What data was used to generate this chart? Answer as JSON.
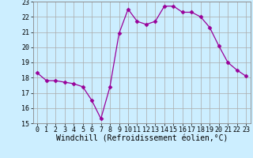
{
  "hours": [
    0,
    1,
    2,
    3,
    4,
    5,
    6,
    7,
    8,
    9,
    10,
    11,
    12,
    13,
    14,
    15,
    16,
    17,
    18,
    19,
    20,
    21,
    22,
    23
  ],
  "values": [
    18.3,
    17.8,
    17.8,
    17.7,
    17.6,
    17.4,
    16.5,
    15.3,
    17.4,
    20.9,
    22.5,
    21.7,
    21.5,
    21.7,
    22.7,
    22.7,
    22.3,
    22.3,
    22.0,
    21.3,
    20.1,
    19.0,
    18.5,
    18.1
  ],
  "line_color": "#990099",
  "marker": "D",
  "marker_size": 2.5,
  "bg_color": "#cceeff",
  "grid_color": "#aaaaaa",
  "xlabel": "Windchill (Refroidissement éolien,°C)",
  "ylim": [
    15,
    23
  ],
  "yticks": [
    15,
    16,
    17,
    18,
    19,
    20,
    21,
    22,
    23
  ],
  "xticks": [
    0,
    1,
    2,
    3,
    4,
    5,
    6,
    7,
    8,
    9,
    10,
    11,
    12,
    13,
    14,
    15,
    16,
    17,
    18,
    19,
    20,
    21,
    22,
    23
  ],
  "tick_fontsize": 6,
  "xlabel_fontsize": 7
}
